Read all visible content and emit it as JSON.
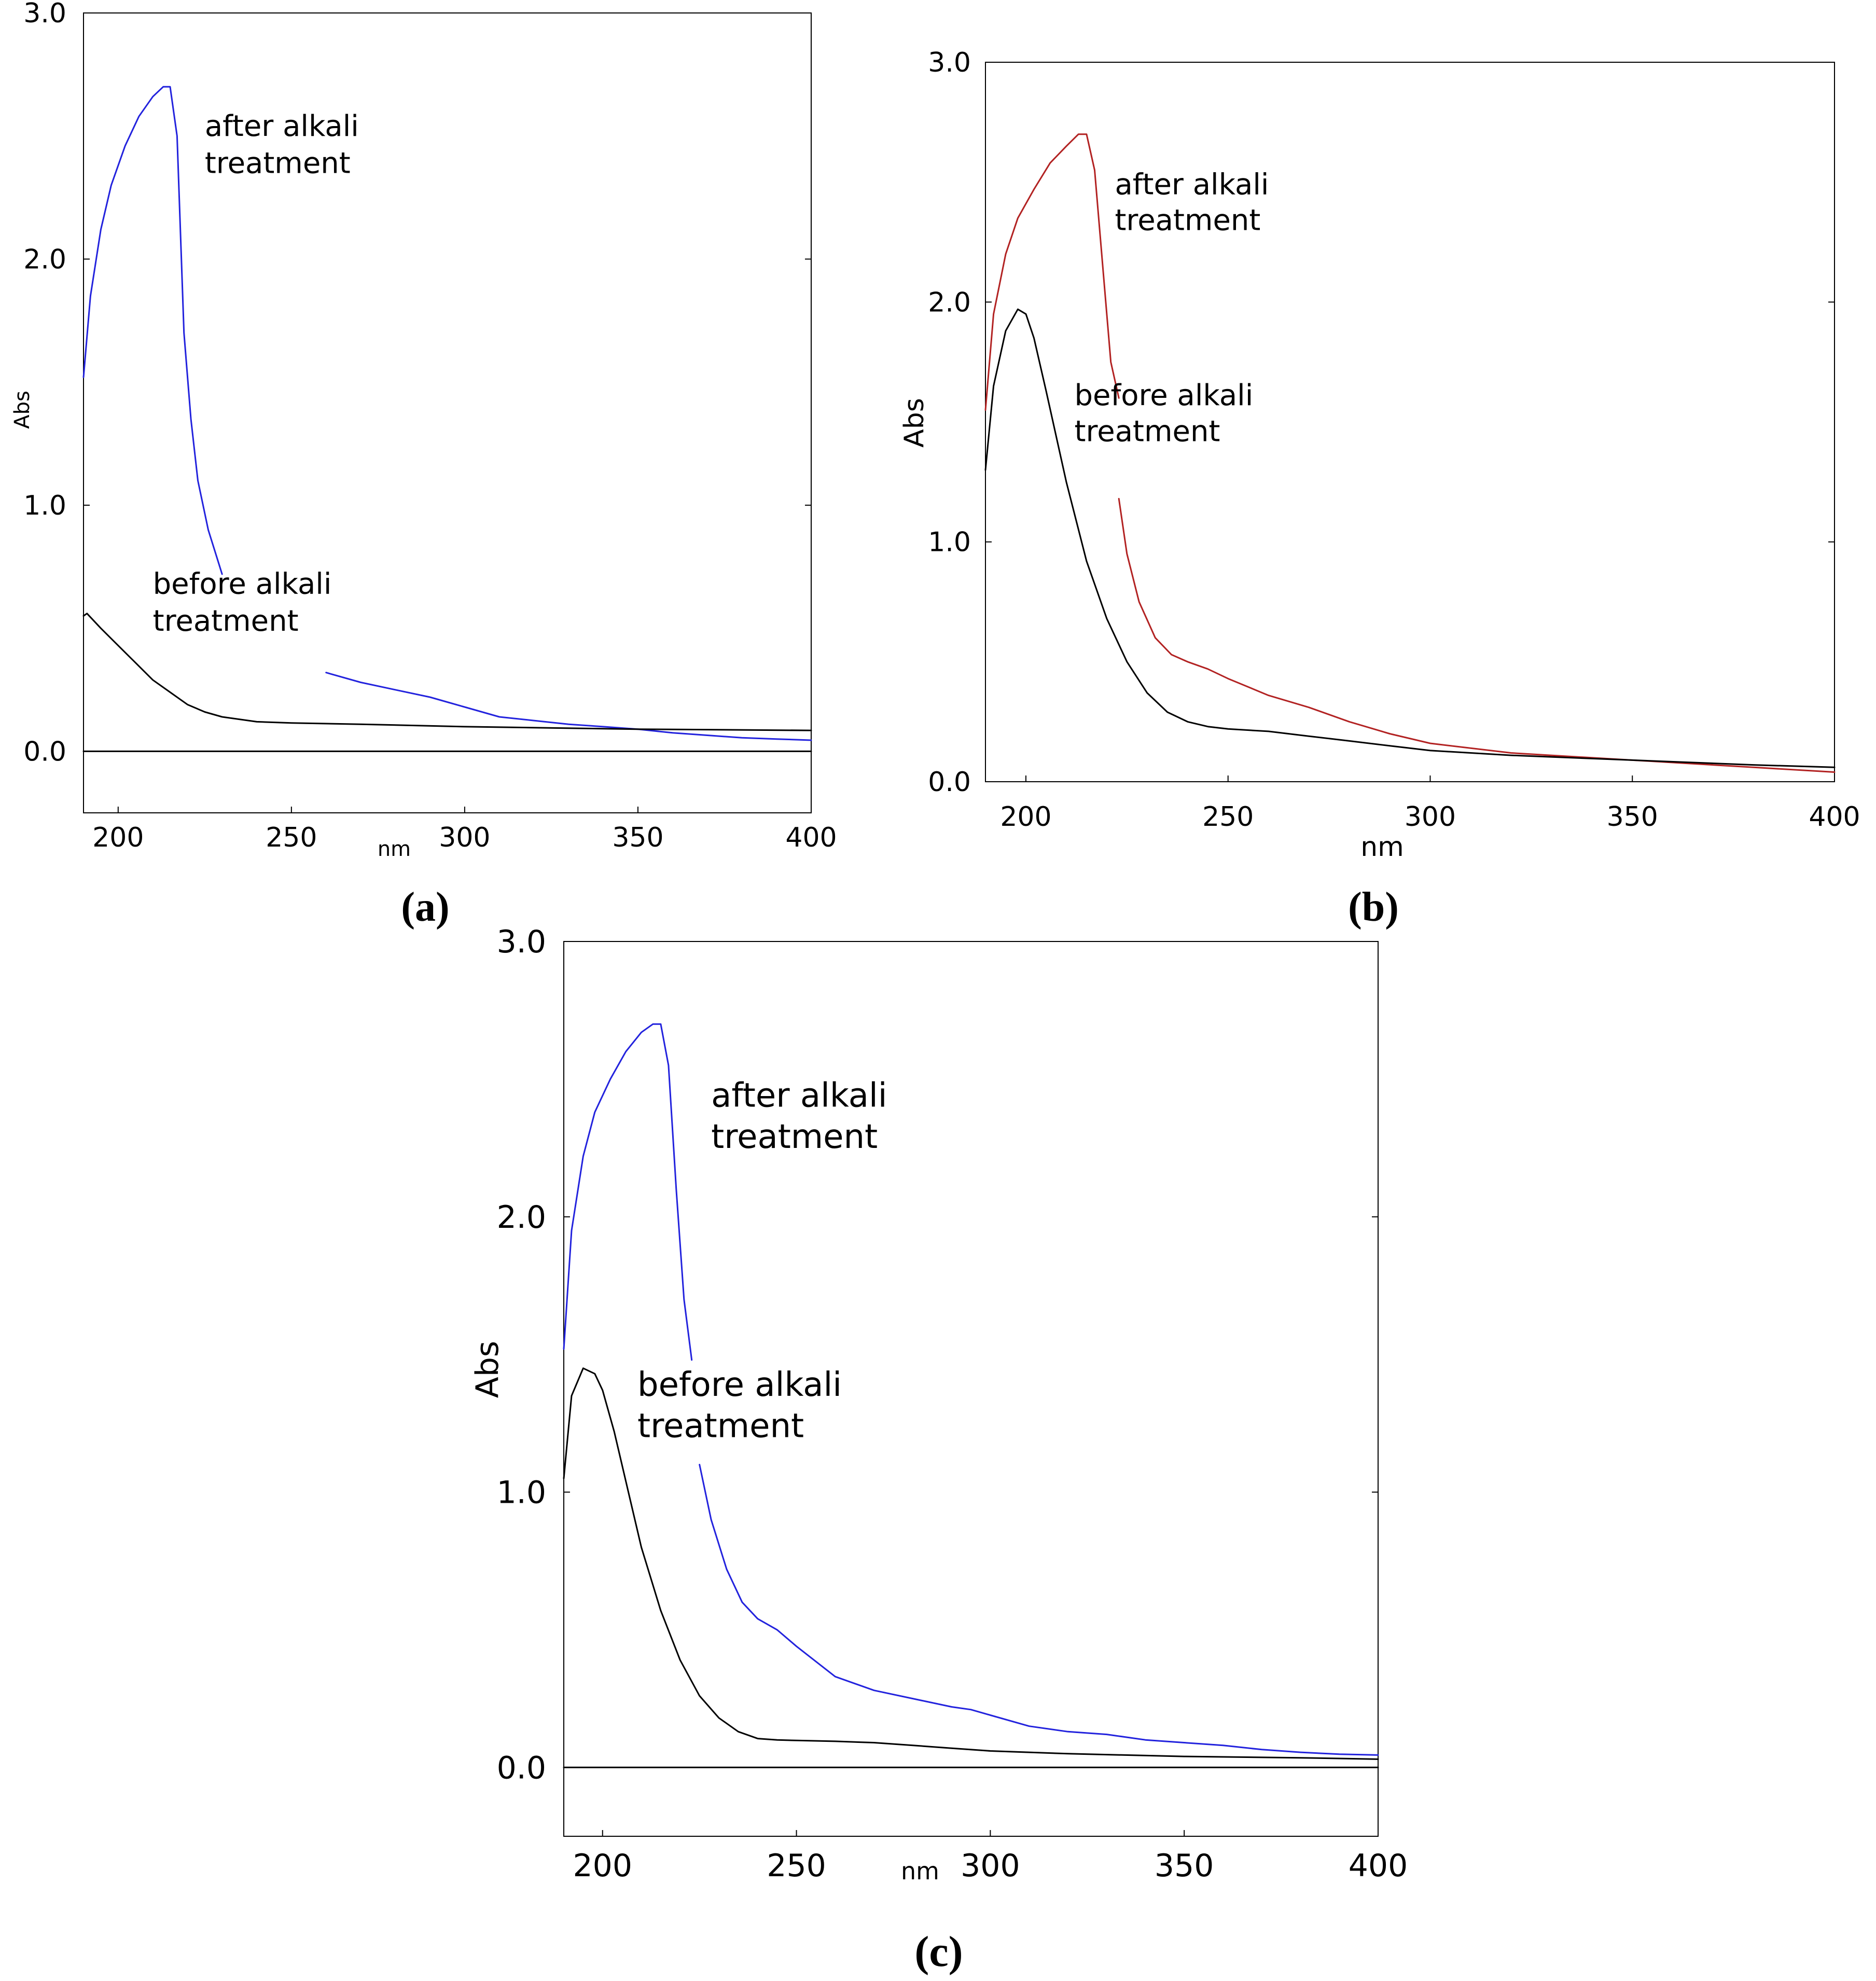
{
  "chart_data": [
    {
      "panel": "a",
      "type": "line",
      "panel_label": "(a)",
      "xlabel": "nm",
      "ylabel": "Abs",
      "xlim": [
        190,
        400
      ],
      "ylim": [
        -0.25,
        3.0
      ],
      "xticks": [
        200,
        250,
        300,
        350,
        400
      ],
      "yticks": [
        0.0,
        1.0,
        2.0,
        3.0
      ],
      "xtick_labels": [
        "200",
        "250",
        "300",
        "350",
        "400"
      ],
      "ytick_labels": [
        "0.0",
        "1.0",
        "2.0",
        "3.0"
      ],
      "annotations": [
        {
          "text": "after alkali",
          "x": 225,
          "y": 2.5
        },
        {
          "text": "treatment",
          "x": 225,
          "y": 2.35
        },
        {
          "text": "before alkali",
          "x": 210,
          "y": 0.64
        },
        {
          "text": "treatment",
          "x": 210,
          "y": 0.49
        }
      ],
      "series": [
        {
          "color": "#2222dd",
          "segments": [
            {
              "x": [
                190,
                192,
                195,
                198,
                202,
                206,
                210,
                213,
                215,
                217,
                219,
                221,
                223,
                226,
                230
              ],
              "y": [
                1.52,
                1.85,
                2.12,
                2.3,
                2.46,
                2.58,
                2.66,
                2.7,
                2.7,
                2.5,
                1.7,
                1.35,
                1.1,
                0.9,
                0.72
              ]
            },
            {
              "x": [
                260,
                270,
                280,
                290,
                295,
                300,
                310,
                320,
                330,
                340,
                350,
                360,
                370,
                380,
                390,
                400
              ],
              "y": [
                0.32,
                0.28,
                0.25,
                0.22,
                0.2,
                0.18,
                0.14,
                0.125,
                0.11,
                0.1,
                0.09,
                0.075,
                0.065,
                0.055,
                0.05,
                0.045
              ]
            }
          ]
        },
        {
          "color": "#000000",
          "segments": [
            {
              "x": [
                190,
                191,
                195,
                200,
                205,
                210,
                215,
                220,
                225,
                230,
                240,
                250,
                270,
                300,
                350,
                400
              ],
              "y": [
                0.55,
                0.56,
                0.5,
                0.43,
                0.36,
                0.29,
                0.24,
                0.19,
                0.16,
                0.14,
                0.12,
                0.115,
                0.11,
                0.1,
                0.09,
                0.085
              ]
            }
          ]
        },
        {
          "color": "#000000",
          "segments": [
            {
              "x": [
                190,
                400
              ],
              "y": [
                0.0,
                0.0
              ]
            }
          ]
        }
      ]
    },
    {
      "panel": "b",
      "type": "line",
      "panel_label": "(b)",
      "xlabel": "nm",
      "ylabel": "Abs",
      "xlim": [
        190,
        400
      ],
      "ylim": [
        0.0,
        3.0
      ],
      "xticks": [
        200,
        250,
        300,
        350,
        400
      ],
      "yticks": [
        0.0,
        1.0,
        2.0,
        3.0
      ],
      "xtick_labels": [
        "200",
        "250",
        "300",
        "350",
        "400"
      ],
      "ytick_labels": [
        "0.0",
        "1.0",
        "2.0",
        "3.0"
      ],
      "annotations": [
        {
          "text": "after alkali",
          "x": 222,
          "y": 2.45
        },
        {
          "text": "treatment",
          "x": 222,
          "y": 2.3
        },
        {
          "text": "before alkali",
          "x": 212,
          "y": 1.57
        },
        {
          "text": "treatment",
          "x": 212,
          "y": 1.42
        }
      ],
      "series": [
        {
          "color": "#b22222",
          "segments": [
            {
              "x": [
                190,
                192,
                195,
                198,
                202,
                206,
                210,
                213,
                215,
                217,
                219,
                221,
                223
              ],
              "y": [
                1.55,
                1.95,
                2.2,
                2.35,
                2.47,
                2.58,
                2.65,
                2.7,
                2.7,
                2.55,
                2.15,
                1.75,
                1.6
              ]
            },
            {
              "x": [
                223,
                225,
                228,
                232,
                236,
                240,
                245,
                250,
                260,
                270,
                280,
                290,
                300,
                320,
                340,
                360,
                380,
                400
              ],
              "y": [
                1.18,
                0.95,
                0.75,
                0.6,
                0.53,
                0.5,
                0.47,
                0.43,
                0.36,
                0.31,
                0.25,
                0.2,
                0.16,
                0.12,
                0.1,
                0.08,
                0.06,
                0.04
              ]
            }
          ]
        },
        {
          "color": "#000000",
          "segments": [
            {
              "x": [
                190,
                192,
                195,
                198,
                200,
                202,
                205,
                210,
                215,
                220,
                225,
                230,
                235,
                240,
                245,
                250,
                260,
                270,
                280,
                290,
                300,
                320,
                350,
                380,
                400
              ],
              "y": [
                1.3,
                1.65,
                1.88,
                1.97,
                1.95,
                1.85,
                1.63,
                1.25,
                0.92,
                0.68,
                0.5,
                0.37,
                0.29,
                0.25,
                0.23,
                0.22,
                0.21,
                0.19,
                0.17,
                0.15,
                0.13,
                0.11,
                0.09,
                0.07,
                0.06
              ]
            }
          ]
        }
      ]
    },
    {
      "panel": "c",
      "type": "line",
      "panel_label": "(c)",
      "xlabel": "nm",
      "ylabel": "Abs",
      "xlim": [
        190,
        400
      ],
      "ylim": [
        -0.25,
        3.0
      ],
      "xticks": [
        200,
        250,
        300,
        350,
        400
      ],
      "yticks": [
        0.0,
        1.0,
        2.0,
        3.0
      ],
      "xtick_labels": [
        "200",
        "250",
        "300",
        "350",
        "400"
      ],
      "ytick_labels": [
        "0.0",
        "1.0",
        "2.0",
        "3.0"
      ],
      "annotations": [
        {
          "text": "after alkali",
          "x": 228,
          "y": 2.4
        },
        {
          "text": "treatment",
          "x": 228,
          "y": 2.25
        },
        {
          "text": "before alkali",
          "x": 209,
          "y": 1.35
        },
        {
          "text": "treatment",
          "x": 209,
          "y": 1.2
        }
      ],
      "series": [
        {
          "color": "#2222dd",
          "segments": [
            {
              "x": [
                190,
                192,
                195,
                198,
                202,
                206,
                210,
                213,
                215,
                217,
                219,
                221,
                223
              ],
              "y": [
                1.52,
                1.95,
                2.22,
                2.38,
                2.5,
                2.6,
                2.67,
                2.7,
                2.7,
                2.55,
                2.1,
                1.7,
                1.48
              ]
            },
            {
              "x": [
                225,
                228,
                232,
                236,
                240,
                245,
                250,
                260,
                270,
                280,
                290,
                295,
                300,
                310,
                320,
                330,
                340,
                350,
                360,
                370,
                380,
                390,
                400
              ],
              "y": [
                1.1,
                0.9,
                0.72,
                0.6,
                0.54,
                0.5,
                0.44,
                0.33,
                0.28,
                0.25,
                0.22,
                0.21,
                0.19,
                0.15,
                0.13,
                0.12,
                0.1,
                0.09,
                0.08,
                0.065,
                0.055,
                0.048,
                0.045
              ]
            }
          ]
        },
        {
          "color": "#000000",
          "segments": [
            {
              "x": [
                190,
                192,
                195,
                198,
                200,
                203,
                206,
                210,
                215,
                220,
                225,
                230,
                235,
                240,
                245,
                250,
                260,
                270,
                280,
                290,
                300,
                320,
                350,
                380,
                400
              ],
              "y": [
                1.05,
                1.35,
                1.45,
                1.43,
                1.37,
                1.22,
                1.04,
                0.8,
                0.57,
                0.39,
                0.26,
                0.18,
                0.13,
                0.105,
                0.1,
                0.098,
                0.095,
                0.09,
                0.08,
                0.07,
                0.06,
                0.05,
                0.04,
                0.035,
                0.03
              ]
            }
          ]
        },
        {
          "color": "#000000",
          "segments": [
            {
              "x": [
                190,
                400
              ],
              "y": [
                0.0,
                0.0
              ]
            }
          ]
        }
      ]
    }
  ]
}
